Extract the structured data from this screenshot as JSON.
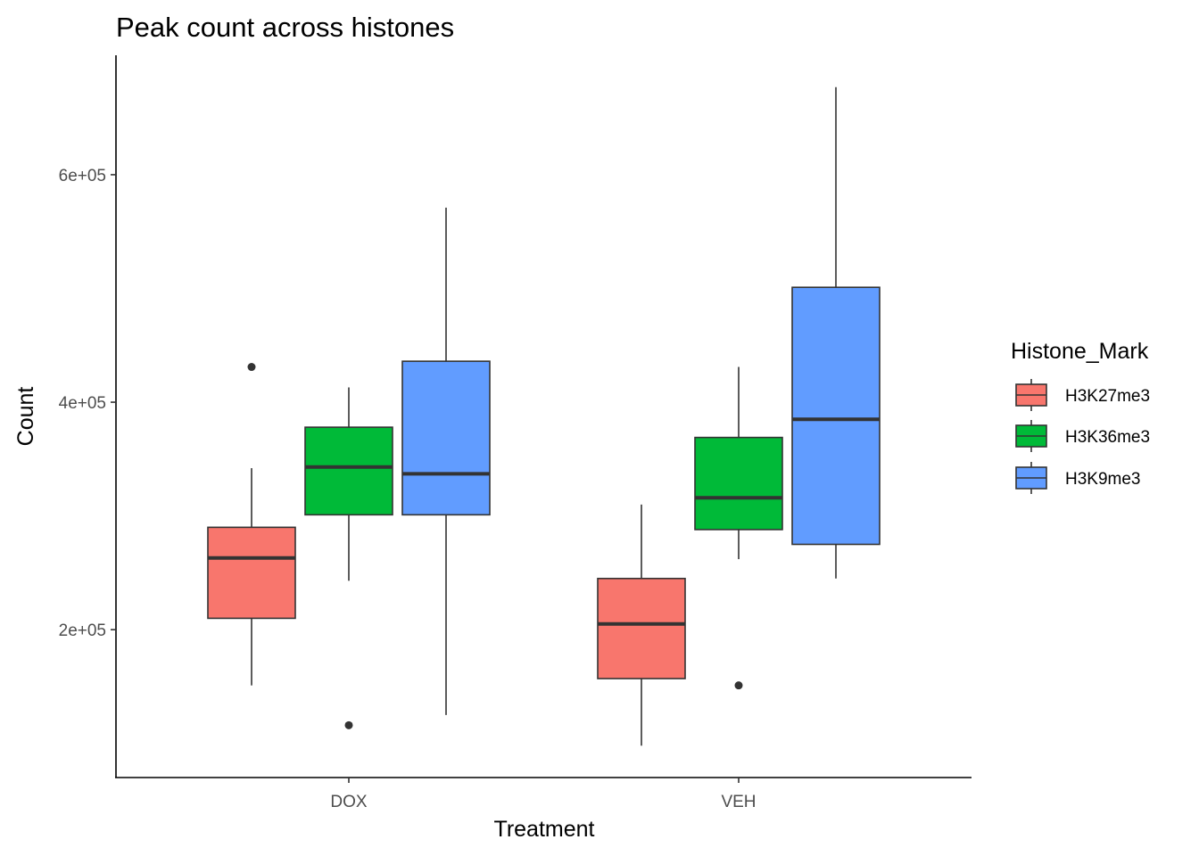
{
  "chart_data": {
    "type": "boxplot",
    "title": "Peak count across histones",
    "xlabel": "Treatment",
    "ylabel": "Count",
    "categories": [
      "DOX",
      "VEH"
    ],
    "ylim": [
      70000,
      705000
    ],
    "y_ticks": [
      200000,
      400000,
      600000
    ],
    "y_tick_labels": [
      "2e+05",
      "4e+05",
      "6e+05"
    ],
    "grid": false,
    "legend": {
      "title": "Histone_Mark",
      "position": "right",
      "entries": [
        "H3K27me3",
        "H3K36me3",
        "H3K9me3"
      ]
    },
    "series": [
      {
        "name": "H3K27me3",
        "color": "#F8766D",
        "boxes": [
          {
            "category": "DOX",
            "lower_whisker": 151000,
            "q1": 210000,
            "median": 263000,
            "q3": 290000,
            "upper_whisker": 342000,
            "outliers": [
              431000
            ]
          },
          {
            "category": "VEH",
            "lower_whisker": 98000,
            "q1": 157000,
            "median": 205000,
            "q3": 245000,
            "upper_whisker": 310000,
            "outliers": []
          }
        ]
      },
      {
        "name": "H3K36me3",
        "color": "#00BA38",
        "boxes": [
          {
            "category": "DOX",
            "lower_whisker": 243000,
            "q1": 301000,
            "median": 343000,
            "q3": 378000,
            "upper_whisker": 413000,
            "outliers": [
              116000
            ]
          },
          {
            "category": "VEH",
            "lower_whisker": 262000,
            "q1": 288000,
            "median": 316000,
            "q3": 369000,
            "upper_whisker": 431000,
            "outliers": [
              151000
            ]
          }
        ]
      },
      {
        "name": "H3K9me3",
        "color": "#619CFF",
        "boxes": [
          {
            "category": "DOX",
            "lower_whisker": 125000,
            "q1": 301000,
            "median": 337000,
            "q3": 436000,
            "upper_whisker": 571000,
            "outliers": []
          },
          {
            "category": "VEH",
            "lower_whisker": 245000,
            "q1": 275000,
            "median": 385000,
            "q3": 501000,
            "upper_whisker": 677000,
            "outliers": []
          }
        ]
      }
    ]
  }
}
